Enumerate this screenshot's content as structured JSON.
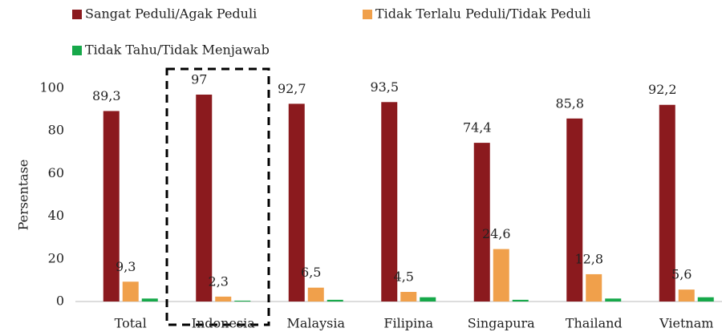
{
  "chart_data": {
    "type": "bar",
    "y_label": "Persentase",
    "categories": [
      "Total",
      "Indonesia",
      "Malaysia",
      "Filipina",
      "Singapura",
      "Thailand",
      "Vietnam"
    ],
    "series": [
      {
        "name": "Sangat Peduli/Agak Peduli",
        "color": "#8b1a1e",
        "values": [
          89.3,
          97,
          92.7,
          93.5,
          74.4,
          85.8,
          92.2
        ],
        "value_labels": [
          "89,3",
          "97",
          "92,7",
          "93,5",
          "74,4",
          "85,8",
          "92,2"
        ]
      },
      {
        "name": "Tidak Terlalu Peduli/Tidak Peduli",
        "color": "#f0a04b",
        "values": [
          9.3,
          2.3,
          6.5,
          4.5,
          24.6,
          12.8,
          5.6
        ],
        "value_labels": [
          "9,3",
          "2,3",
          "6,5",
          "4,5",
          "24,6",
          "12,8",
          "5,6"
        ]
      },
      {
        "name": "Tidak Tahu/Tidak Menjawab",
        "color": "#16a84a",
        "values": [
          1.4,
          0.4,
          0.8,
          2,
          0.8,
          1.4,
          2
        ]
      }
    ],
    "ylim": [
      0,
      100
    ],
    "yticks": [
      0,
      20,
      40,
      60,
      80,
      100
    ],
    "grid": false,
    "legend": "top"
  }
}
